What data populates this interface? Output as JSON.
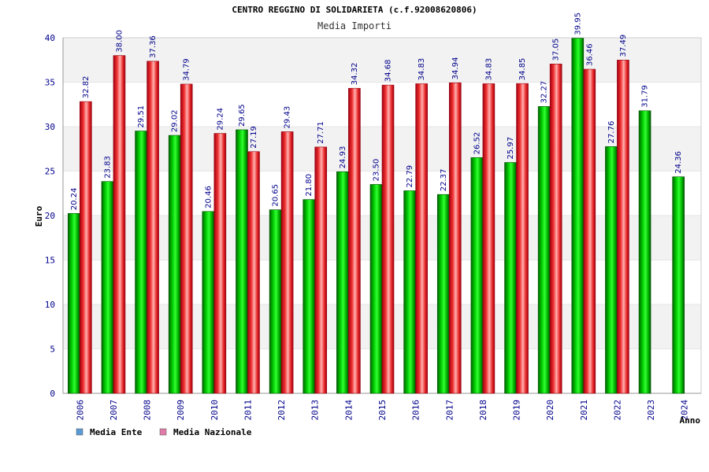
{
  "chart_data": {
    "type": "bar",
    "title": "CENTRO REGGINO DI SOLIDARIETA (c.f.92008620806)",
    "subtitle": "Media Importi",
    "xlabel": "Anno",
    "ylabel": "Euro",
    "ylim": [
      0,
      40
    ],
    "yticks": [
      0,
      5,
      10,
      15,
      20,
      25,
      30,
      35,
      40
    ],
    "grid": true,
    "legend_position": "bottom-left",
    "categories": [
      "2006",
      "2007",
      "2008",
      "2009",
      "2010",
      "2011",
      "2012",
      "2013",
      "2014",
      "2015",
      "2016",
      "2017",
      "2018",
      "2019",
      "2020",
      "2021",
      "2022",
      "2023",
      "2024"
    ],
    "series": [
      {
        "name": "Media Ente",
        "legend_color": "#5b9bd5",
        "bar_color": "#00aa00",
        "values": [
          20.24,
          23.83,
          29.51,
          29.02,
          20.46,
          29.65,
          20.65,
          21.8,
          24.93,
          23.5,
          22.79,
          22.37,
          26.52,
          25.97,
          32.27,
          39.95,
          27.76,
          31.79,
          24.36
        ],
        "labels": [
          "20.24",
          "23.83",
          "29.51",
          "29.02",
          "20.46",
          "29.65",
          "20.65",
          "21.80",
          "24.93",
          "23.50",
          "22.79",
          "22.37",
          "26.52",
          "25.97",
          "32.27",
          "39.95",
          "27.76",
          "31.79",
          "24.36"
        ]
      },
      {
        "name": "Media Nazionale",
        "legend_color": "#e07ba8",
        "bar_color": "#e8202a",
        "values": [
          32.82,
          38.0,
          37.36,
          34.79,
          29.24,
          27.19,
          29.43,
          27.71,
          34.32,
          34.68,
          34.83,
          34.94,
          34.83,
          34.85,
          37.05,
          36.46,
          37.49,
          null,
          null
        ],
        "labels": [
          "32.82",
          "38.00",
          "37.36",
          "34.79",
          "29.24",
          "27.19",
          "29.43",
          "27.71",
          "34.32",
          "34.68",
          "34.83",
          "34.94",
          "34.83",
          "34.85",
          "37.05",
          "36.46",
          "37.49",
          "",
          ""
        ]
      }
    ]
  }
}
